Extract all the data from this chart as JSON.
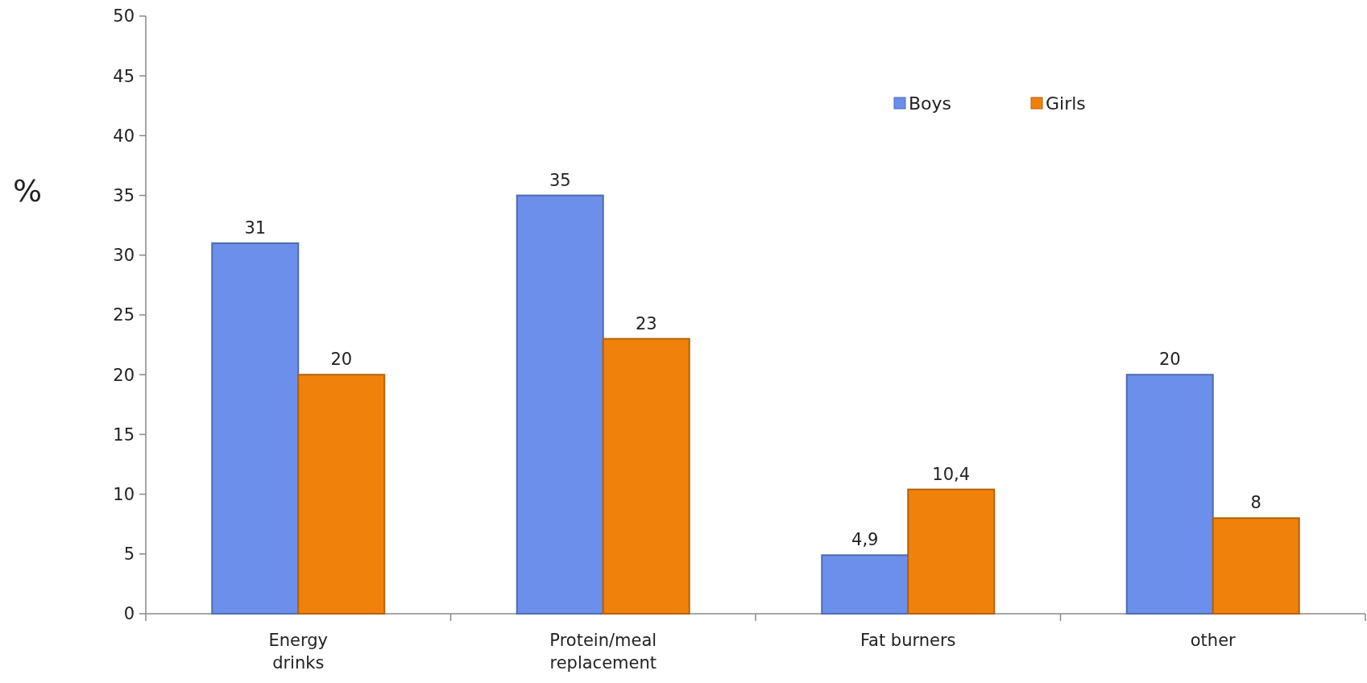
{
  "chart_data": {
    "type": "bar",
    "ylabel": "%",
    "categories": [
      "Energy drinks",
      "Protein/meal replacement",
      "Fat burners",
      "other"
    ],
    "series": [
      {
        "name": "Boys",
        "color": "#6b8fea",
        "values": [
          31,
          35,
          4.9,
          20
        ],
        "value_labels": [
          "31",
          "35",
          "4,9",
          "20"
        ]
      },
      {
        "name": "Girls",
        "color": "#f0820c",
        "values": [
          20,
          23,
          10.4,
          8
        ],
        "value_labels": [
          "20",
          "23",
          "10,4",
          "8"
        ]
      }
    ],
    "ylim": [
      0,
      50
    ],
    "yticks": [
      0,
      5,
      10,
      15,
      20,
      25,
      30,
      35,
      40,
      45,
      50
    ],
    "grid": false,
    "legend": "top right"
  }
}
